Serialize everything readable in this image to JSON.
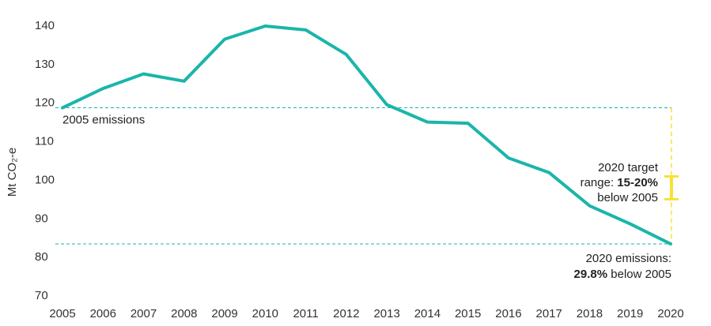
{
  "chart_data": {
    "type": "line",
    "title": "",
    "xlabel": "",
    "ylabel": "Mt CO₂-e",
    "ylim": [
      70,
      140
    ],
    "yticks": [
      "70",
      "80",
      "90",
      "100",
      "110",
      "120",
      "130",
      "140"
    ],
    "categories": [
      "2005",
      "2006",
      "2007",
      "2008",
      "2009",
      "2010",
      "2011",
      "2012",
      "2013",
      "2014",
      "2015",
      "2016",
      "2017",
      "2018",
      "2019",
      "2020"
    ],
    "series": [
      {
        "color": "#1ab5aa",
        "values": [
          118.6,
          123.6,
          127.4,
          125.5,
          136.4,
          139.8,
          138.8,
          132.4,
          119.4,
          114.9,
          114.6,
          105.6,
          101.8,
          93.2,
          88.5,
          83.3
        ]
      }
    ],
    "reference_lines": [
      {
        "value": 118.6,
        "label": "2005 emissions",
        "color": "#1ab5aa"
      },
      {
        "value": 83.3,
        "color": "#1ab5aa"
      }
    ],
    "target_range": {
      "year": "2020",
      "low": 94.9,
      "high": 100.8,
      "color": "#f7e135",
      "label_line1": "2020 target",
      "label_line2_prefix": "range: ",
      "label_line2_bold": "15-20%",
      "label_line3": "below 2005"
    },
    "end_annotation": {
      "line1": "2020 emissions:",
      "line2_bold": "29.8%",
      "line2_rest": " below 2005"
    },
    "grid": false,
    "legend": "none"
  }
}
